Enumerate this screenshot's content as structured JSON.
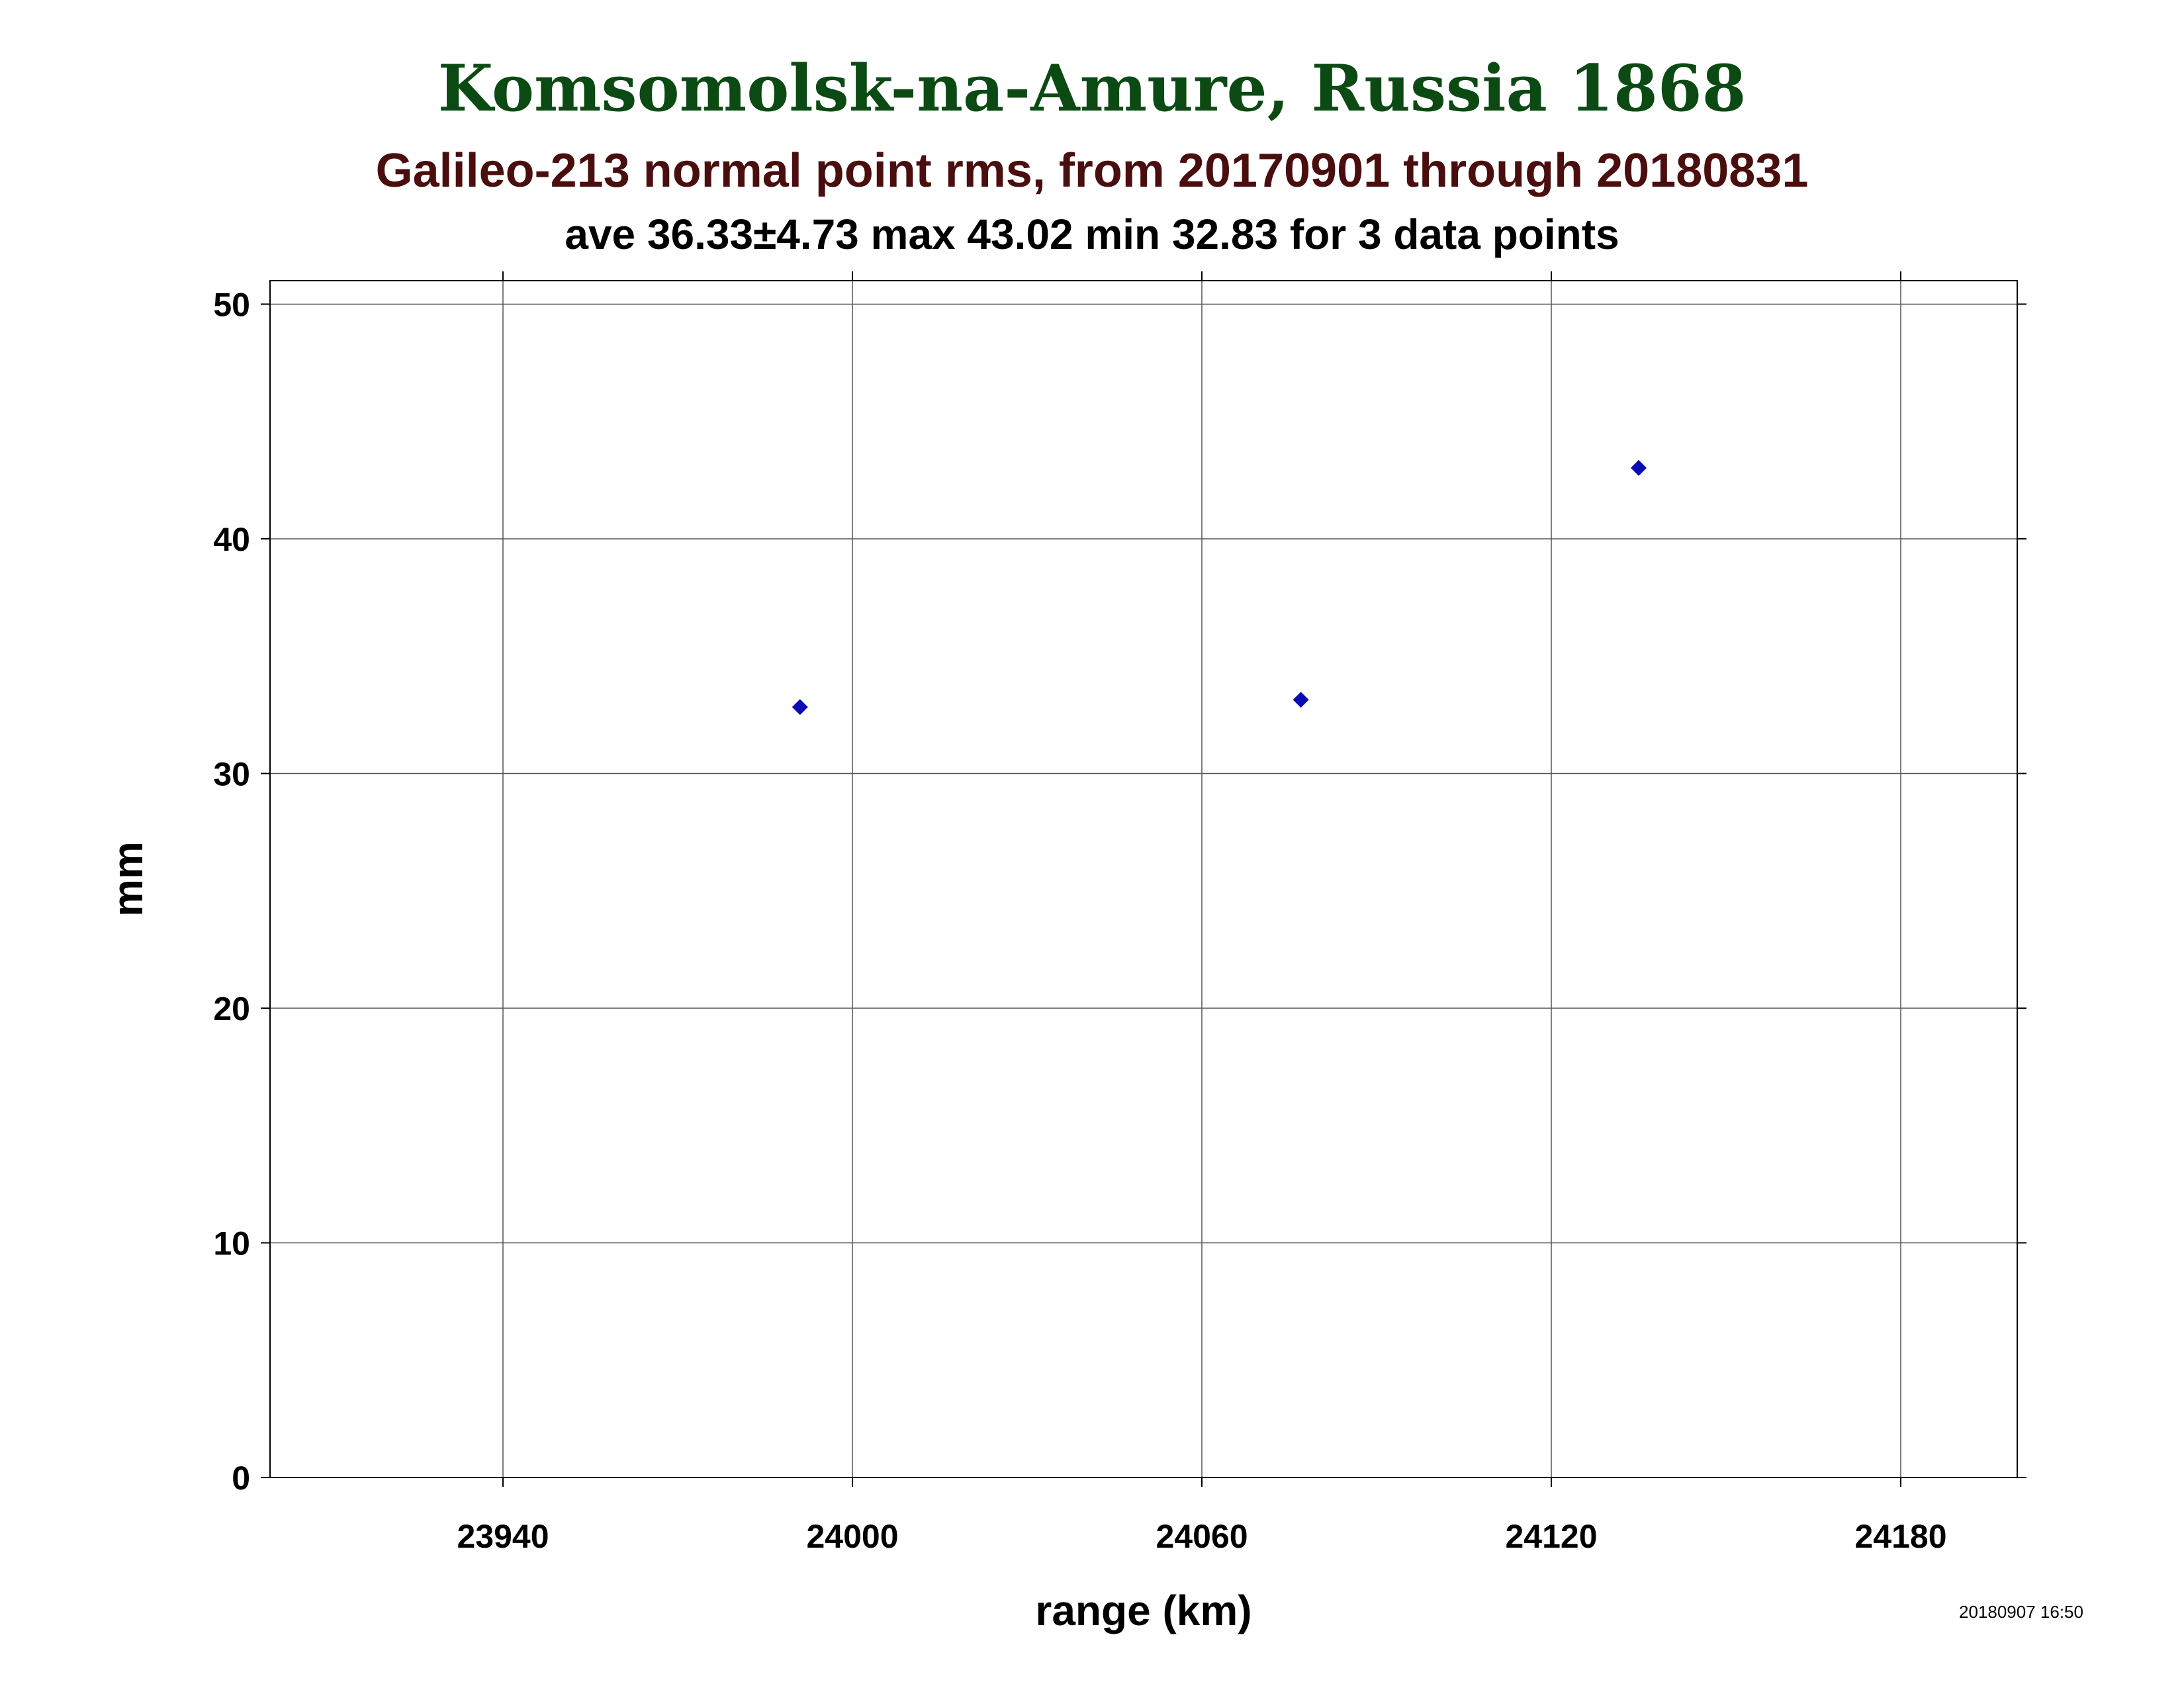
{
  "chart_data": {
    "type": "scatter",
    "title": "Komsomolsk-na-Amure, Russia 1868",
    "subtitle": "Galileo-213 normal point rms, from 20170901 through 20180831",
    "stats_line": "ave 36.33±4.73 max 43.02 min 32.83 for 3 data points",
    "xlabel": "range (km)",
    "ylabel": "mm",
    "xlim": [
      23900,
      24200
    ],
    "ylim": [
      0,
      51
    ],
    "xticks": [
      23940,
      24000,
      24060,
      24120,
      24180
    ],
    "yticks": [
      0,
      10,
      20,
      30,
      40,
      50
    ],
    "grid": true,
    "marker_color": "#0b0bb5",
    "marker": "diamond",
    "points": [
      {
        "x": 23991,
        "y": 32.83
      },
      {
        "x": 24077,
        "y": 33.14
      },
      {
        "x": 24135,
        "y": 43.02
      }
    ]
  },
  "timestamp": "20180907 16:50"
}
